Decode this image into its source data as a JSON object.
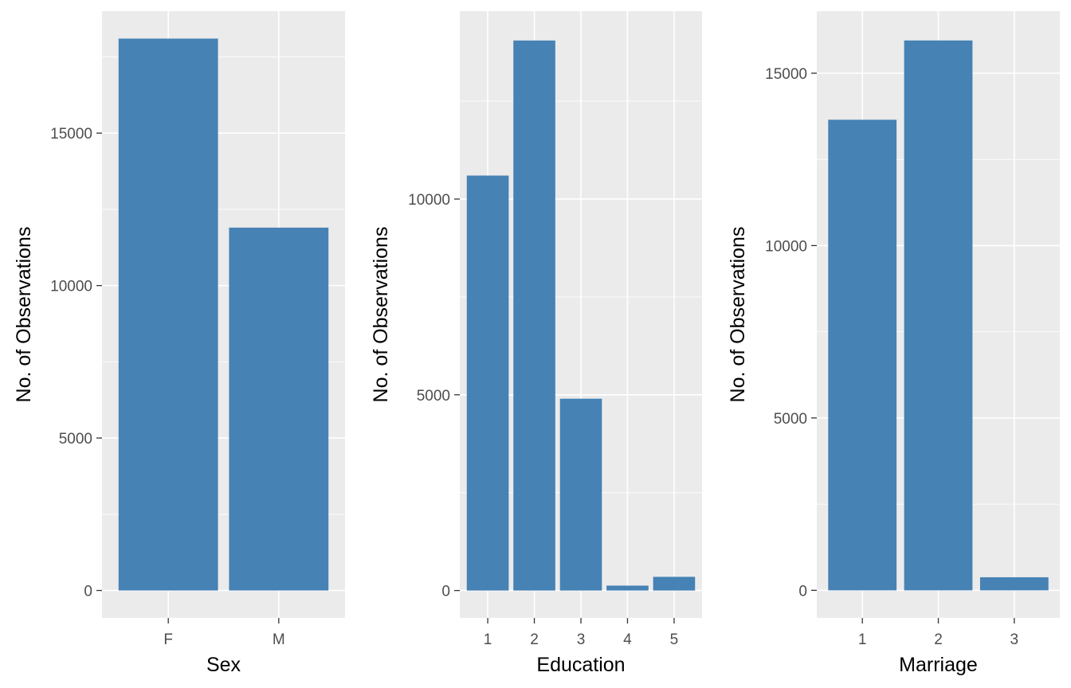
{
  "chart_data": [
    {
      "type": "bar",
      "xlabel": "Sex",
      "ylabel": "No. of Observations",
      "categories": [
        "F",
        "M"
      ],
      "values": [
        18100,
        11900
      ],
      "ylim": [
        -900,
        19000
      ],
      "yticks": [
        0,
        5000,
        10000,
        15000
      ],
      "ytick_labels": [
        "0",
        "5000",
        "10000",
        "15000"
      ],
      "grid": true,
      "colors": {
        "bar": "#4682B4",
        "panel": "#EBEBEB",
        "grid": "#FFFFFF"
      }
    },
    {
      "type": "bar",
      "xlabel": "Education",
      "ylabel": "No. of Observations",
      "categories": [
        "1",
        "2",
        "3",
        "4",
        "5"
      ],
      "values": [
        10600,
        14050,
        4900,
        125,
        350
      ],
      "ylim": [
        -700,
        14800
      ],
      "yticks": [
        0,
        5000,
        10000
      ],
      "ytick_labels": [
        "0",
        "5000",
        "10000"
      ],
      "grid": true,
      "colors": {
        "bar": "#4682B4",
        "panel": "#EBEBEB",
        "grid": "#FFFFFF"
      }
    },
    {
      "type": "bar",
      "xlabel": "Marriage",
      "ylabel": "No. of Observations",
      "categories": [
        "1",
        "2",
        "3"
      ],
      "values": [
        13650,
        15950,
        380
      ],
      "ylim": [
        -800,
        16800
      ],
      "yticks": [
        0,
        5000,
        10000,
        15000
      ],
      "ytick_labels": [
        "0",
        "5000",
        "10000",
        "15000"
      ],
      "grid": true,
      "colors": {
        "bar": "#4682B4",
        "panel": "#EBEBEB",
        "grid": "#FFFFFF"
      }
    }
  ]
}
